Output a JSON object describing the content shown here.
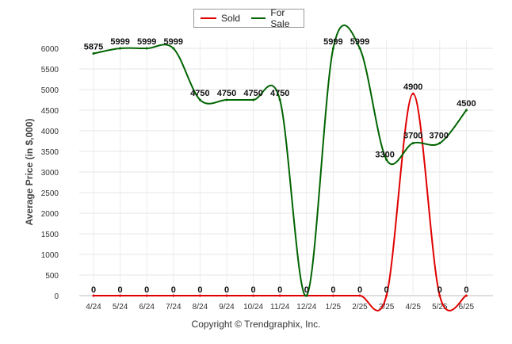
{
  "chart_data": {
    "type": "line",
    "categories": [
      "4/24",
      "5/24",
      "6/24",
      "7/24",
      "8/24",
      "9/24",
      "10/24",
      "11/24",
      "12/24",
      "1/25",
      "2/25",
      "3/25",
      "4/25",
      "5/25",
      "6/25"
    ],
    "series": [
      {
        "name": "Sold",
        "color": "#e00000",
        "values": [
          0,
          0,
          0,
          0,
          0,
          0,
          0,
          0,
          0,
          0,
          0,
          0,
          4900,
          0,
          0
        ],
        "labels": [
          "0",
          "0",
          "0",
          "0",
          "0",
          "0",
          "0",
          "0",
          "0",
          "0",
          "0",
          "0",
          "4900",
          "0",
          "0"
        ]
      },
      {
        "name": "For Sale",
        "color": "#006400",
        "values": [
          5875,
          5999,
          5999,
          5999,
          4750,
          4750,
          4750,
          4750,
          0,
          5999,
          5999,
          3300,
          3700,
          3700,
          4500
        ],
        "labels": [
          "5875",
          "5999",
          "5999",
          "5999",
          "4750",
          "4750",
          "4750",
          "4750",
          "0",
          "5999",
          "5999",
          "3300",
          "3700",
          "3700",
          "4500"
        ]
      }
    ],
    "ylabel": "Average Price (in $,000)",
    "yticks": [
      0,
      500,
      1000,
      1500,
      2000,
      2500,
      3000,
      3500,
      4000,
      4500,
      5000,
      5500,
      6000
    ],
    "ylim": [
      0,
      6000
    ],
    "grid": true,
    "legend_position": "top-center"
  },
  "legend": {
    "sold": "Sold",
    "for_sale": "For Sale"
  },
  "footer": {
    "copyright": "Copyright © Trendgraphix, Inc."
  }
}
